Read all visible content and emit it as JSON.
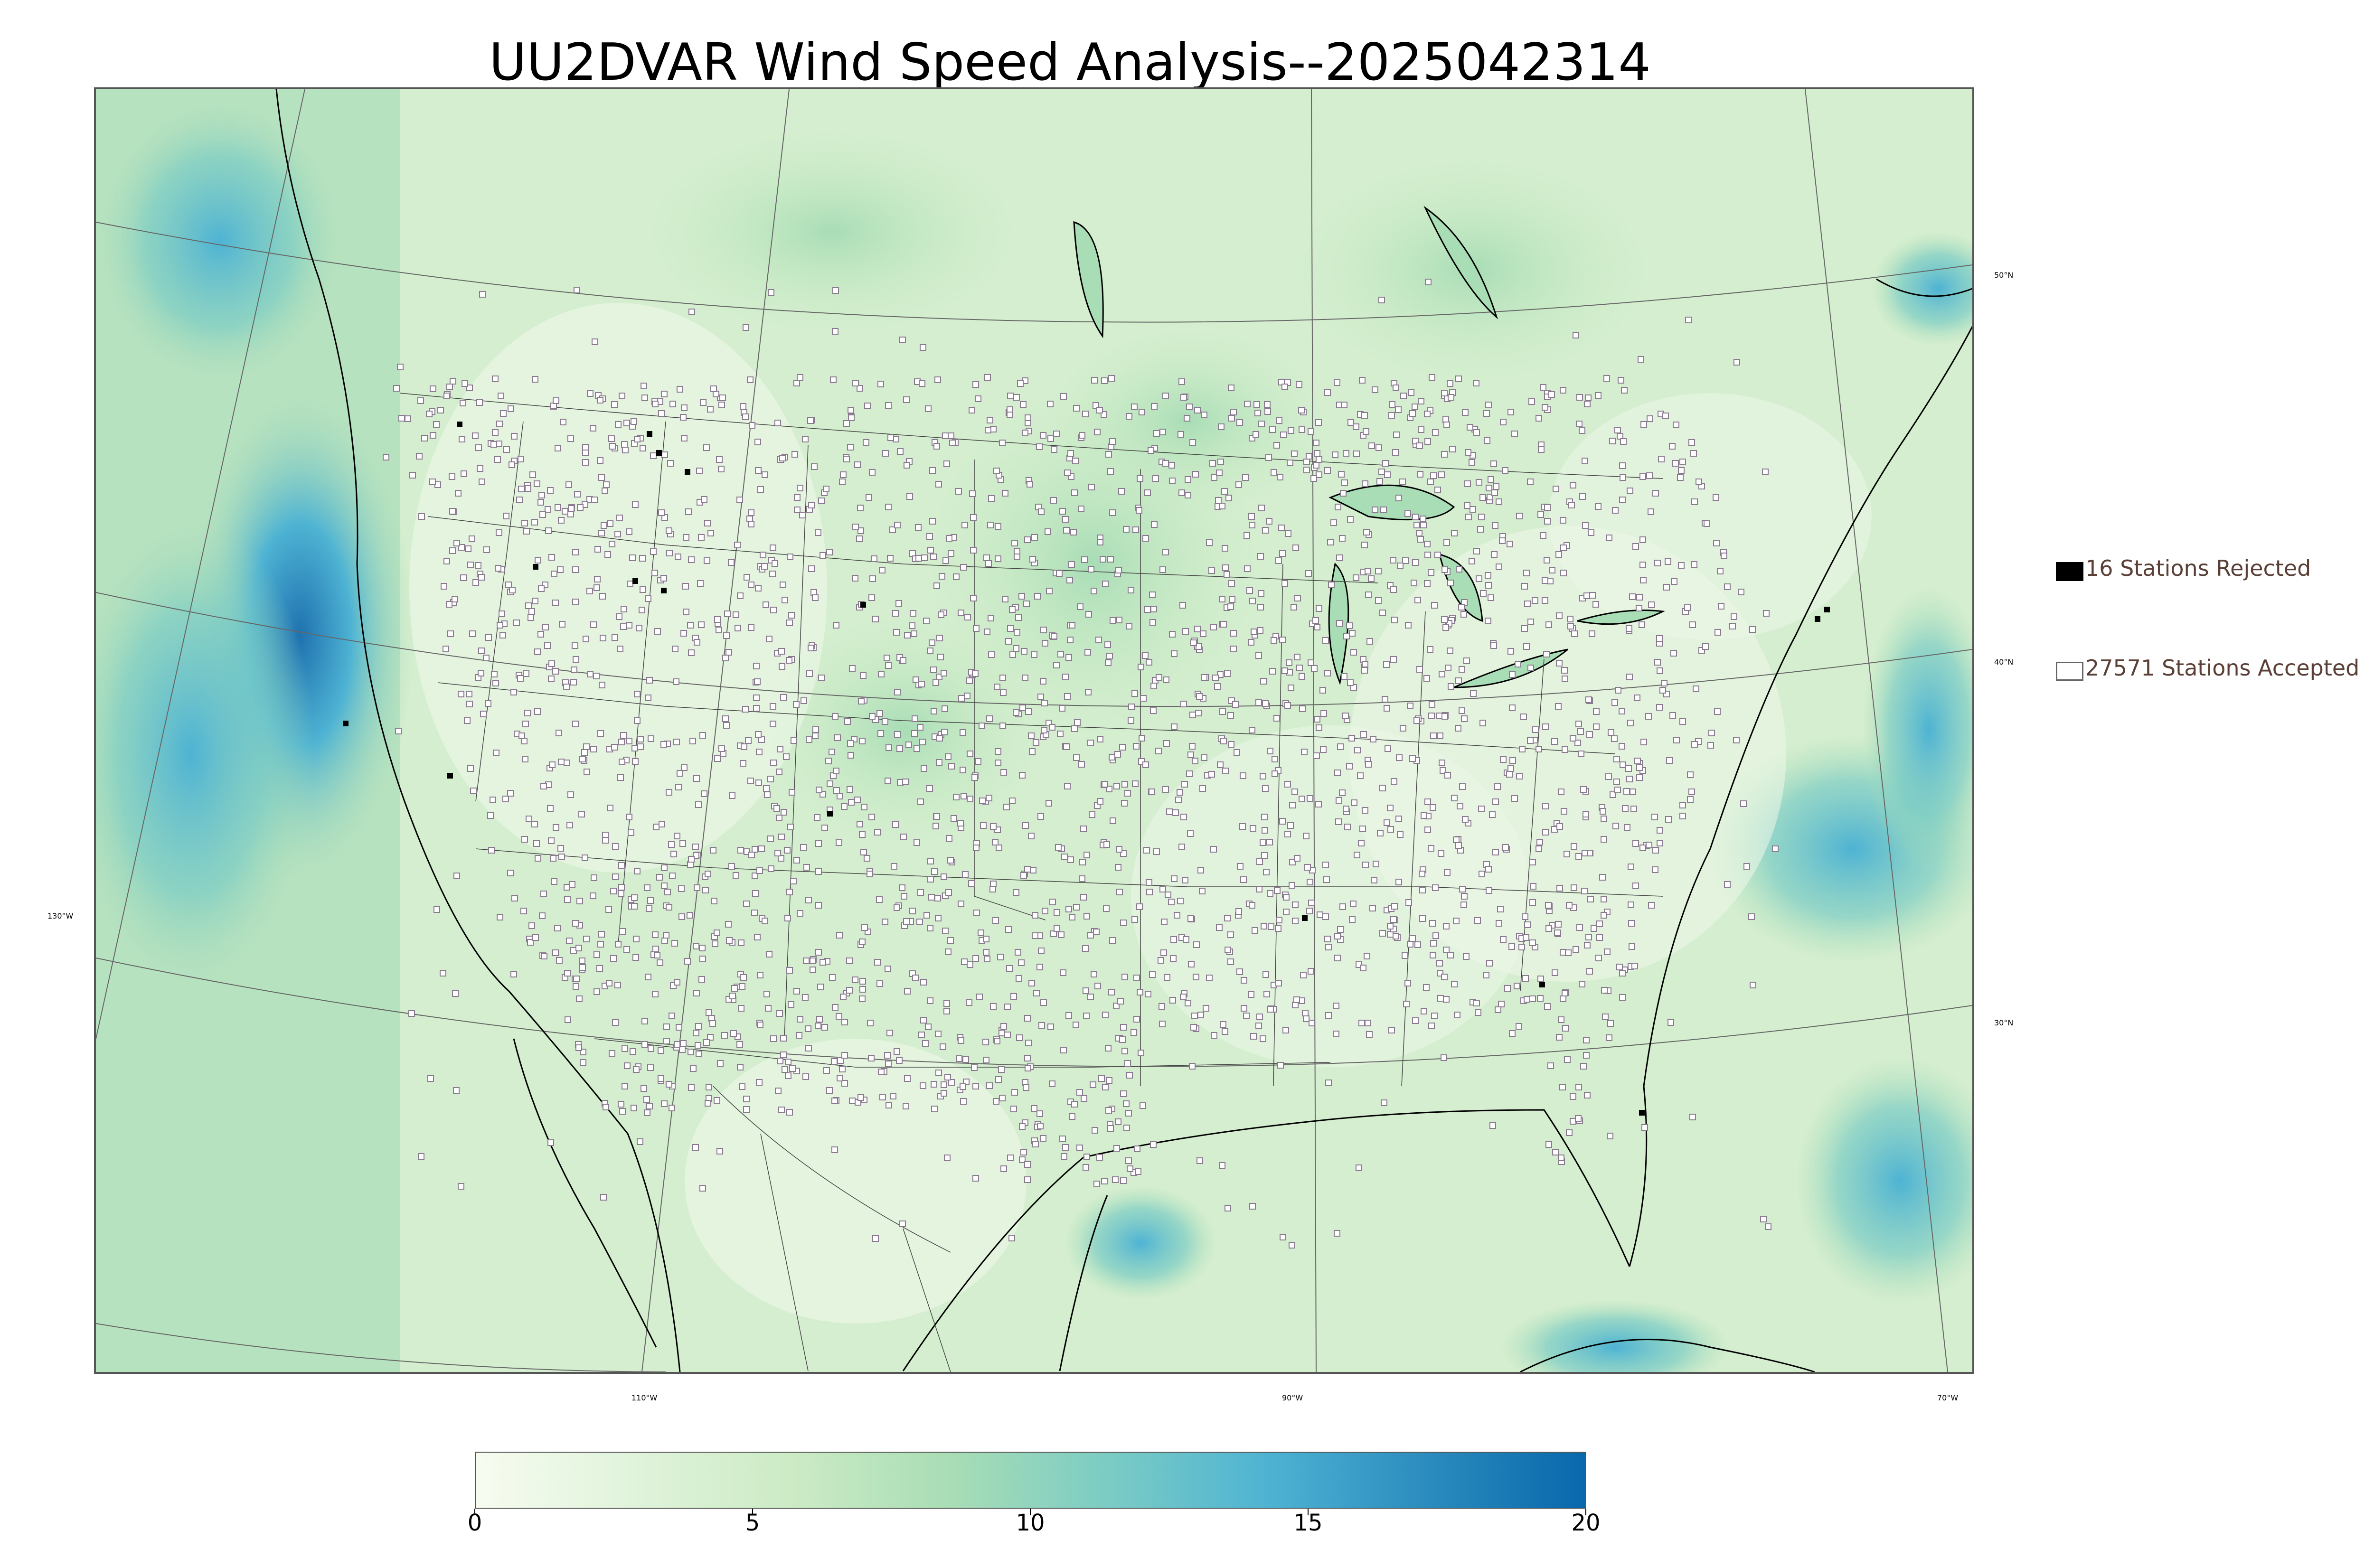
{
  "title": "UU2DVAR Wind Speed Analysis--2025042314",
  "map": {
    "lon_labels": [
      "130°W",
      "110°W",
      "90°W",
      "70°W"
    ],
    "lat_labels": [
      "50°N",
      "40°N",
      "30°N"
    ],
    "colors": {
      "land_light": "#eef8ea",
      "low": "#d8f0d2",
      "mid": "#a8dcb4",
      "high": "#58b4d2",
      "max": "#1f72b0",
      "coast": "#000000",
      "borders": "#444444",
      "station_fill": "#ffffff",
      "station_edge": "#8a7a90"
    }
  },
  "legend": {
    "rejected_label": "16 Stations Rejected",
    "accepted_label": "27571 Stations Accepted"
  },
  "colorbar": {
    "ticks": [
      "0",
      "5",
      "10",
      "15",
      "20"
    ],
    "range": [
      0,
      20
    ],
    "stops": [
      "#f7fcf0",
      "#e0f3db",
      "#ccebc5",
      "#a8ddb5",
      "#7bccc4",
      "#4eb3d3",
      "#2b8cbe",
      "#0868ac"
    ]
  }
}
